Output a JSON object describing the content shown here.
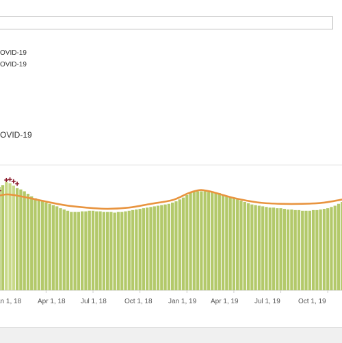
{
  "header": {
    "legend_lines": [
      "OVID-19",
      "OVID-19"
    ],
    "section_title": "OVID-19"
  },
  "colors": {
    "bars": "#b3c96a",
    "bars_highlight": "#c9d989",
    "trend": "#e8943f",
    "markers": "#8b1a2b",
    "gridline": "#e6e6e6",
    "axis": "#cccccc"
  },
  "chart_data": {
    "type": "bar",
    "x_axis": {
      "tick_labels": [
        "an 1, 18",
        "Apr 1, 18",
        "Jul 1, 18",
        "Oct 1, 18",
        "Jan 1, 19",
        "Apr 1, 19",
        "Jul 1, 19",
        "Oct 1, 19"
      ]
    },
    "ylim": [
      0,
      200
    ],
    "grid": true,
    "legend": "none",
    "bars": {
      "start_date": "2017-12-18",
      "interval_days": 7,
      "values": [
        150,
        157,
        165,
        168,
        173,
        171,
        167,
        163,
        161,
        158,
        154,
        150,
        147,
        145,
        142,
        140,
        138,
        136,
        134,
        131,
        129,
        127,
        125,
        125,
        125,
        126,
        126,
        127,
        127,
        126,
        126,
        125,
        125,
        125,
        124,
        125,
        125,
        126,
        127,
        128,
        129,
        130,
        131,
        132,
        133,
        134,
        135,
        136,
        137,
        138,
        140,
        142,
        145,
        148,
        152,
        156,
        158,
        158,
        158,
        158,
        157,
        157,
        156,
        155,
        153,
        151,
        149,
        147,
        145,
        143,
        141,
        139,
        137,
        136,
        135,
        134,
        133,
        132,
        132,
        131,
        131,
        130,
        129,
        129,
        128,
        128,
        127,
        127,
        127,
        128,
        128,
        129,
        130,
        131,
        133,
        135,
        138,
        141
      ]
    },
    "trend_line": {
      "name": "",
      "points": [
        [
          0,
          148
        ],
        [
          4,
          153
        ],
        [
          8,
          150
        ],
        [
          13,
          144
        ],
        [
          20,
          136
        ],
        [
          26,
          132
        ],
        [
          32,
          130
        ],
        [
          38,
          132
        ],
        [
          44,
          138
        ],
        [
          50,
          144
        ],
        [
          54,
          154
        ],
        [
          56,
          158
        ],
        [
          58,
          160
        ],
        [
          61,
          157
        ],
        [
          64,
          152
        ],
        [
          68,
          146
        ],
        [
          74,
          140
        ],
        [
          80,
          138
        ],
        [
          86,
          138
        ],
        [
          92,
          140
        ],
        [
          98,
          146
        ]
      ]
    },
    "markers": {
      "type": "cross",
      "positions": [
        [
          1,
          158
        ],
        [
          2,
          159
        ],
        [
          4,
          176
        ],
        [
          5,
          177
        ],
        [
          6,
          174
        ],
        [
          7,
          170
        ]
      ]
    }
  }
}
